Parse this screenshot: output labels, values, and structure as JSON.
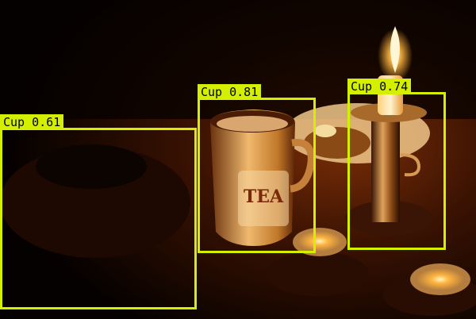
{
  "image": {
    "description_scene": "candle-lit table at night",
    "box_color": "#d4f000",
    "label_text_color": "#000000"
  },
  "detections": [
    {
      "label": "Cup 0.61",
      "class": "Cup",
      "score": 0.61
    },
    {
      "label": "Cup 0.81",
      "class": "Cup",
      "score": 0.81
    },
    {
      "label": "Cup 0.74",
      "class": "Cup",
      "score": 0.74
    }
  ],
  "mug": {
    "print": "TEA"
  }
}
